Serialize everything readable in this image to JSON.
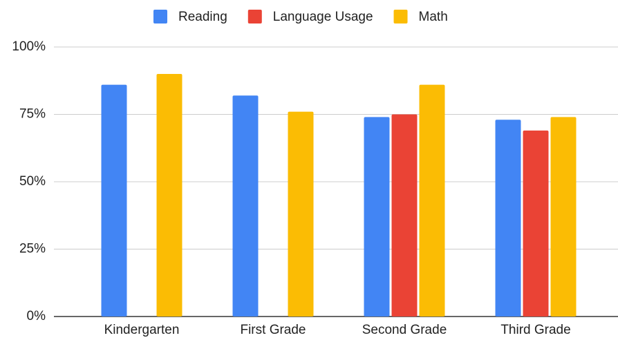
{
  "chart_data": {
    "type": "bar",
    "categories": [
      "Kindergarten",
      "First Grade",
      "Second Grade",
      "Third Grade"
    ],
    "series": [
      {
        "name": "Reading",
        "color": "#4285f4",
        "values": [
          86,
          82,
          74,
          73
        ]
      },
      {
        "name": "Language Usage",
        "color": "#ea4335",
        "values": [
          null,
          null,
          75,
          69
        ]
      },
      {
        "name": "Math",
        "color": "#fbbc04",
        "values": [
          90,
          76,
          86,
          74
        ]
      }
    ],
    "ylim": [
      0,
      100
    ],
    "yticks": [
      {
        "value": 0,
        "label": "0%"
      },
      {
        "value": 25,
        "label": "25%"
      },
      {
        "value": 50,
        "label": "50%"
      },
      {
        "value": 75,
        "label": "75%"
      },
      {
        "value": 100,
        "label": "100%"
      }
    ],
    "grid": true,
    "legend": "top"
  }
}
